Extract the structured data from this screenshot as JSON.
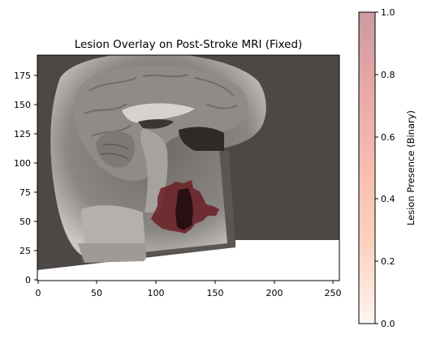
{
  "chart_data": {
    "type": "heatmap",
    "title": "Lesion Overlay on Post-Stroke MRI (Fixed)",
    "xlabel": "",
    "ylabel": "",
    "x_ticks": [
      "0",
      "50",
      "100",
      "150",
      "200",
      "250"
    ],
    "y_ticks": [
      "0",
      "25",
      "50",
      "75",
      "100",
      "125",
      "150",
      "175"
    ],
    "xlim": [
      0,
      256
    ],
    "ylim": [
      0,
      192
    ],
    "colorbar": {
      "label": "Lesion Presence (Binary)",
      "ticks": [
        "0.0",
        "0.2",
        "0.4",
        "0.6",
        "0.8",
        "1.0"
      ],
      "range": [
        0,
        1
      ],
      "colormap": "Reds",
      "alpha": 0.4
    },
    "background": "grayscale sagittal MRI brain slice",
    "lesion_region": {
      "value": 1,
      "approx_x_range": [
        95,
        155
      ],
      "approx_y_range": [
        36,
        84
      ]
    },
    "colors": {
      "mri_background": "#4d4845",
      "lesion": "#6a1d26",
      "colormap_low": "#fff5f0",
      "colormap_high": "#cc9a9e"
    }
  }
}
